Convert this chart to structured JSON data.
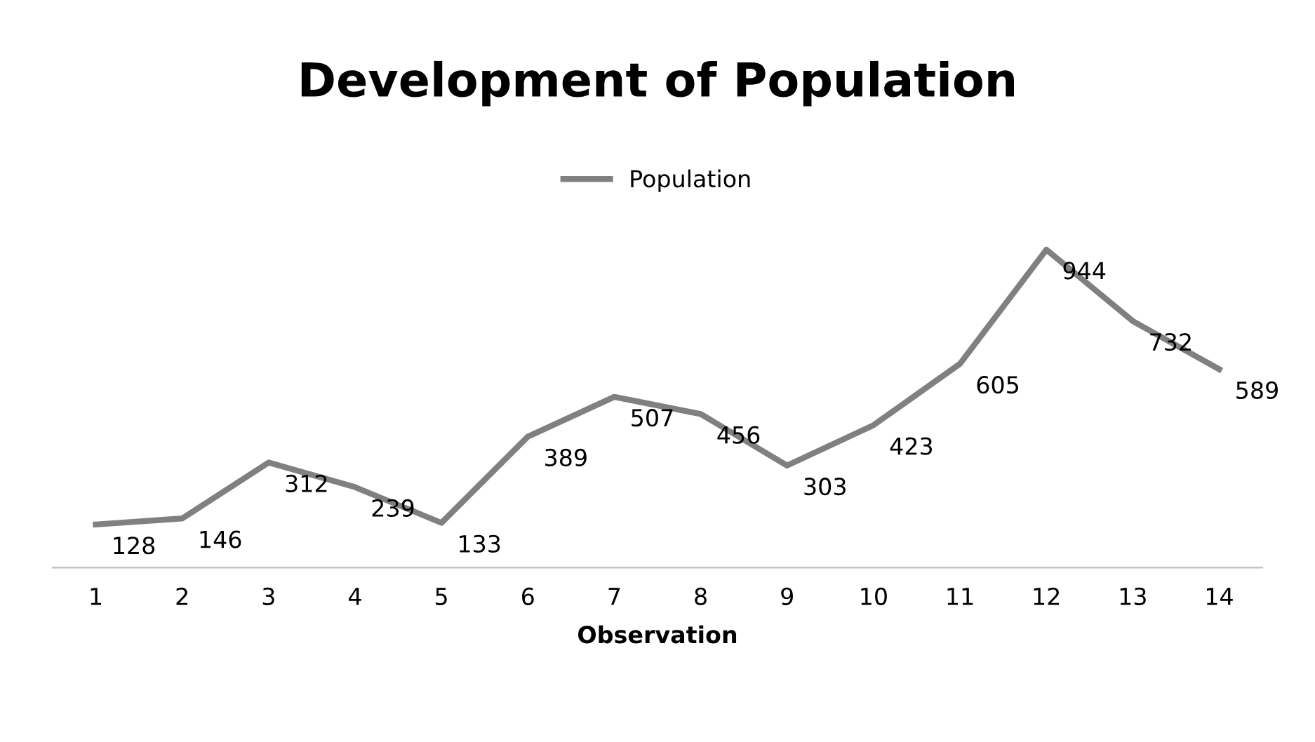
{
  "chart_data": {
    "type": "line",
    "title": "Development of Population",
    "xlabel": "Observation",
    "categories": [
      "1",
      "2",
      "3",
      "4",
      "5",
      "6",
      "7",
      "8",
      "9",
      "10",
      "11",
      "12",
      "13",
      "14"
    ],
    "series": [
      {
        "name": "Population",
        "color": "#808080",
        "values": [
          128,
          146,
          312,
          239,
          133,
          389,
          507,
          456,
          303,
          423,
          605,
          944,
          732,
          589
        ]
      }
    ],
    "data_labels": true,
    "legend": "top",
    "grid": false,
    "marker": "none",
    "line_style": "solid"
  }
}
